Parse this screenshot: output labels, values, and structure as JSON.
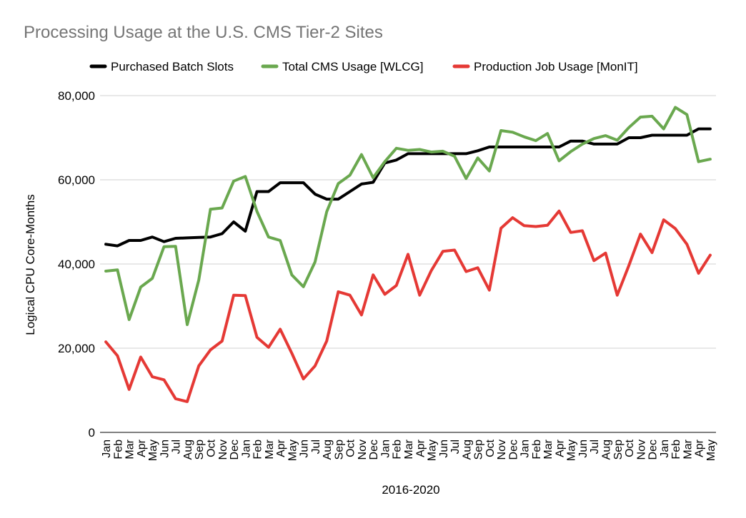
{
  "chart_data": {
    "type": "line",
    "title": "Processing Usage at the U.S. CMS Tier-2 Sites",
    "xlabel": "2016-2020",
    "ylabel": "Logical CPU Core-Months",
    "ylim": [
      0,
      80000
    ],
    "y_ticks": [
      "0",
      "20,000",
      "40,000",
      "60,000",
      "80,000"
    ],
    "y_tick_values": [
      0,
      20000,
      40000,
      60000,
      80000
    ],
    "grid": true,
    "legend_position": "top",
    "categories": [
      "Jan",
      "Feb",
      "Mar",
      "Apr",
      "May",
      "Jun",
      "Jul",
      "Aug",
      "Sep",
      "Oct",
      "Nov",
      "Dec",
      "Jan",
      "Feb",
      "Mar",
      "Apr",
      "May",
      "Jun",
      "Jul",
      "Aug",
      "Sep",
      "Oct",
      "Nov",
      "Dec",
      "Jan",
      "Feb",
      "Mar",
      "Apr",
      "May",
      "Jun",
      "Jul",
      "Aug",
      "Sep",
      "Oct",
      "Nov",
      "Dec",
      "Jan",
      "Feb",
      "Mar",
      "Apr",
      "May",
      "Jun",
      "Jul",
      "Aug",
      "Sep",
      "Oct",
      "Nov",
      "Dec",
      "Jan",
      "Feb",
      "Mar",
      "Apr",
      "May"
    ],
    "series": [
      {
        "name": "Purchased Batch Slots",
        "color": "#000000",
        "values": [
          44700,
          44300,
          45600,
          45600,
          46400,
          45300,
          46100,
          46200,
          46300,
          46400,
          47200,
          50000,
          47800,
          57200,
          57200,
          59300,
          59300,
          59300,
          56600,
          55400,
          55400,
          57200,
          59000,
          59400,
          64000,
          64700,
          66200,
          66200,
          66200,
          66200,
          66200,
          66200,
          66900,
          67800,
          67800,
          67800,
          67800,
          67800,
          67800,
          67800,
          69200,
          69200,
          68500,
          68500,
          68500,
          70000,
          70000,
          70600,
          70600,
          70600,
          70600,
          72100,
          72100
        ]
      },
      {
        "name": "Total CMS Usage [WLCG]",
        "color": "#6aa84f",
        "values": [
          38300,
          38600,
          26800,
          34500,
          36600,
          44100,
          44200,
          25600,
          36200,
          53000,
          53300,
          59700,
          60800,
          52500,
          46400,
          45600,
          37400,
          34600,
          40500,
          52400,
          59100,
          61100,
          66000,
          60500,
          64300,
          67500,
          67000,
          67200,
          66600,
          66800,
          65600,
          60300,
          65200,
          62100,
          71700,
          71300,
          70200,
          69300,
          71000,
          64500,
          66700,
          68500,
          69800,
          70500,
          69400,
          72400,
          74900,
          75100,
          72100,
          77200,
          75500,
          64300,
          64900
        ]
      },
      {
        "name": "Production Job Usage [MonIT]",
        "color": "#e53935",
        "values": [
          21500,
          18200,
          10200,
          17900,
          13200,
          12500,
          8000,
          7300,
          15800,
          19600,
          21700,
          32600,
          32500,
          22600,
          20200,
          24500,
          18800,
          12700,
          15800,
          21700,
          33400,
          32600,
          27900,
          37400,
          32800,
          34900,
          42300,
          32600,
          38400,
          43000,
          43300,
          38200,
          39100,
          33800,
          48500,
          51000,
          49100,
          48900,
          49200,
          52600,
          47500,
          47900,
          40800,
          42600,
          32600,
          39600,
          47100,
          42700,
          50500,
          48400,
          44700,
          37800,
          42100
        ]
      }
    ]
  }
}
